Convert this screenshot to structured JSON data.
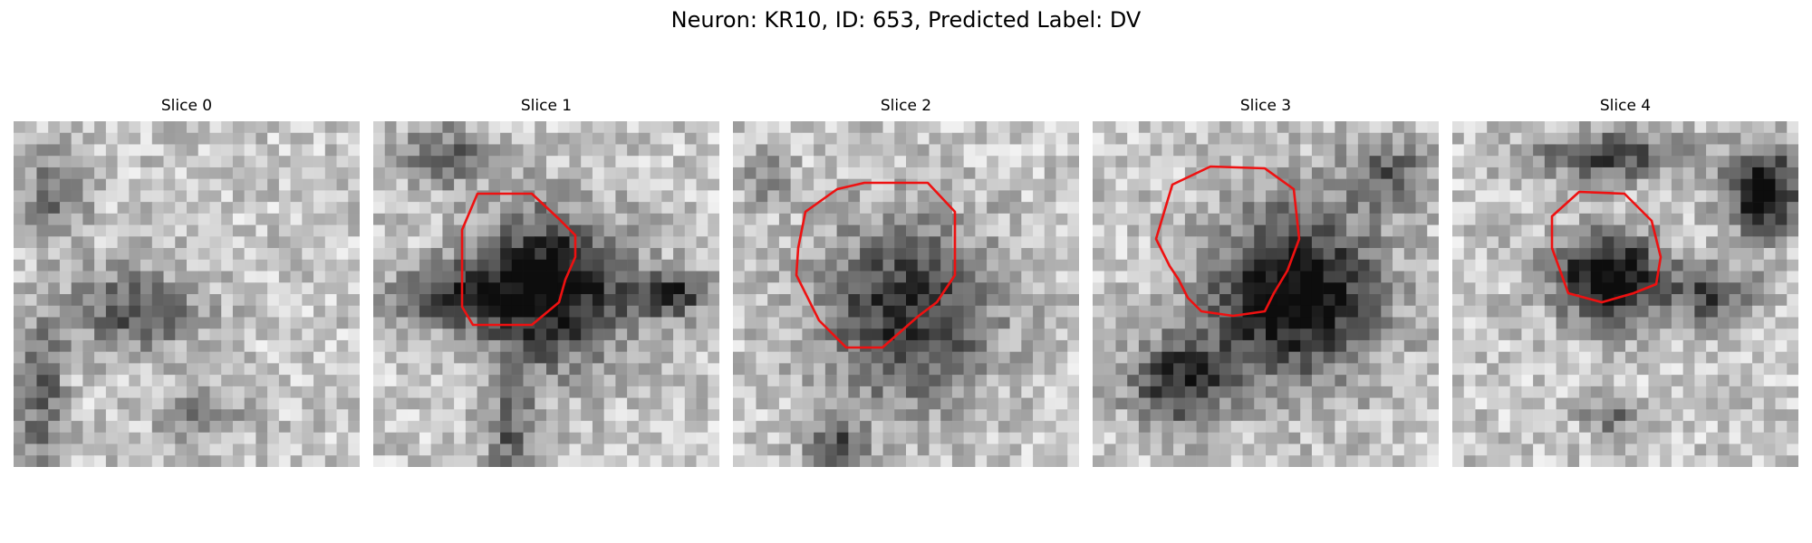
{
  "figure": {
    "title": "Neuron: KR10, ID: 653, Predicted Label: DV",
    "panels": [
      {
        "title": "Slice 0",
        "has_contour": false
      },
      {
        "title": "Slice 1",
        "has_contour": true
      },
      {
        "title": "Slice 2",
        "has_contour": true
      },
      {
        "title": "Slice 3",
        "has_contour": true
      },
      {
        "title": "Slice 4",
        "has_contour": true
      }
    ],
    "colors": {
      "contour": "#ee1111",
      "background": "#ffffff",
      "colormap": "gray"
    }
  }
}
